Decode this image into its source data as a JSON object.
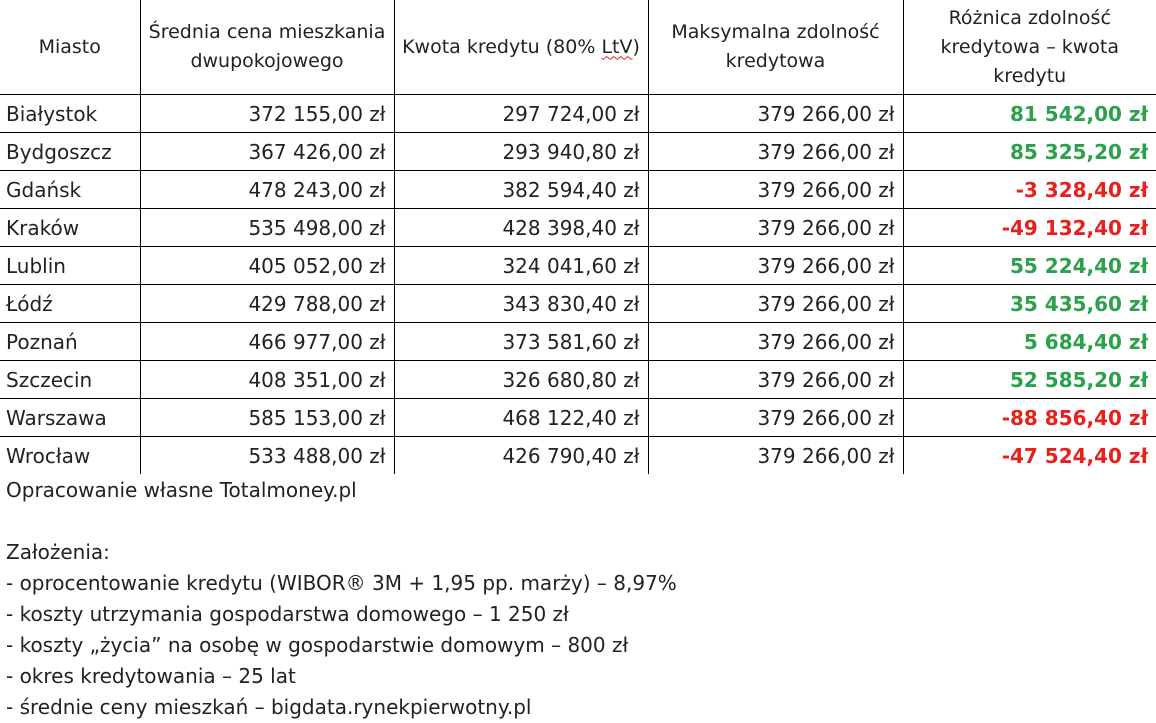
{
  "table": {
    "headers": [
      "Miasto",
      "Średnia cena mieszkania dwupokojowego",
      [
        "Kwota kredytu (80% ",
        "LtV",
        ")"
      ],
      "Maksymalna zdolność kredytowa",
      "Różnica zdolność kredytowa – kwota kredytu"
    ],
    "header_labels": {
      "city": "Miasto",
      "avg_price": "Średnia cena mieszkania dwupokojowego",
      "loan_a": "Kwota kredytu (80% ",
      "loan_b": "LtV",
      "loan_c": ")",
      "max_capacity": "Maksymalna zdolność kredytowa",
      "difference": "Różnica zdolność kredytowa – kwota kredytu"
    },
    "rows": [
      {
        "city": "Białystok",
        "avg_price": "372 155,00 zł",
        "loan": "297 724,00 zł",
        "max_capacity": "379 266,00 zł",
        "difference": "81 542,00 zł",
        "sign": "pos"
      },
      {
        "city": "Bydgoszcz",
        "avg_price": "367 426,00 zł",
        "loan": "293 940,80 zł",
        "max_capacity": "379 266,00 zł",
        "difference": "85 325,20 zł",
        "sign": "pos"
      },
      {
        "city": "Gdańsk",
        "avg_price": "478 243,00 zł",
        "loan": "382 594,40 zł",
        "max_capacity": "379 266,00 zł",
        "difference": "-3 328,40 zł",
        "sign": "neg"
      },
      {
        "city": "Kraków",
        "avg_price": "535 498,00 zł",
        "loan": "428 398,40 zł",
        "max_capacity": "379 266,00 zł",
        "difference": "-49 132,40 zł",
        "sign": "neg"
      },
      {
        "city": "Lublin",
        "avg_price": "405 052,00 zł",
        "loan": "324 041,60 zł",
        "max_capacity": "379 266,00 zł",
        "difference": "55 224,40 zł",
        "sign": "pos"
      },
      {
        "city": "Łódź",
        "avg_price": "429 788,00 zł",
        "loan": "343 830,40 zł",
        "max_capacity": "379 266,00 zł",
        "difference": "35 435,60 zł",
        "sign": "pos"
      },
      {
        "city": "Poznań",
        "avg_price": "466 977,00 zł",
        "loan": "373 581,60 zł",
        "max_capacity": "379 266,00 zł",
        "difference": "5 684,40 zł",
        "sign": "pos"
      },
      {
        "city": "Szczecin",
        "avg_price": "408 351,00 zł",
        "loan": "326 680,80 zł",
        "max_capacity": "379 266,00 zł",
        "difference": "52 585,20 zł",
        "sign": "pos"
      },
      {
        "city": "Warszawa",
        "avg_price": "585 153,00 zł",
        "loan": "468 122,40 zł",
        "max_capacity": "379 266,00 zł",
        "difference": "-88 856,40 zł",
        "sign": "neg"
      },
      {
        "city": "Wrocław",
        "avg_price": "533 488,00 zł",
        "loan": "426 790,40 zł",
        "max_capacity": "379 266,00 zł",
        "difference": "-47 524,40 zł",
        "sign": "neg"
      }
    ]
  },
  "source": "Opracowanie własne Totalmoney.pl",
  "assumptions": {
    "title": "Założenia:",
    "items": [
      "- oprocentowanie kredytu (WIBOR® 3M + 1,95 pp. marży) – 8,97%",
      "- koszty utrzymania gospodarstwa domowego – 1 250 zł",
      "- koszty „życia” na osobę w gospodarstwie domowym – 800 zł",
      "- okres kredytowania – 25 lat",
      "- średnie ceny mieszkań – bigdata.rynekpierwotny.pl"
    ]
  },
  "colors": {
    "positive": "#2aa14a",
    "negative": "#e8201c",
    "spellcheck_underline": "#e8201c"
  }
}
